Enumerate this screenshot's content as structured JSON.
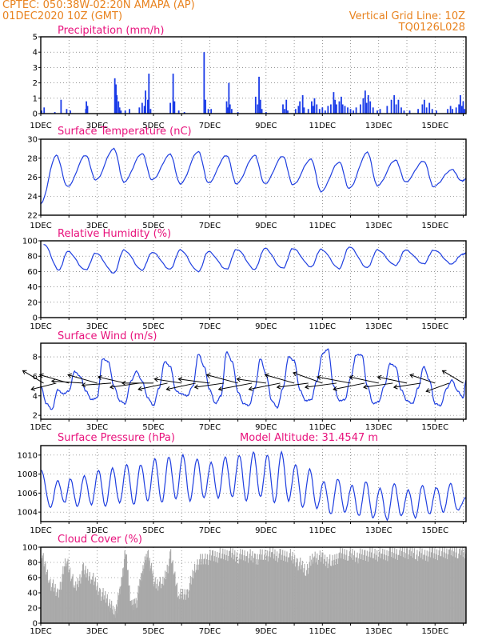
{
  "header": {
    "line1_left": "CPTEC:   050:38W-02:20N   AMAPA (AP)",
    "line2_left": "01DEC2020 10Z (GMT)",
    "line1_right": "Vertical Grid Line: 10Z",
    "line2_right": "TQ0126L028"
  },
  "colors": {
    "line": "#1f3fe0",
    "bar": "#1a3be8",
    "cloud": "#a9a9a9",
    "title": "#e8127c",
    "header": "#e8821e"
  },
  "x_ticks": [
    "1DEC",
    "3DEC",
    "5DEC",
    "7DEC",
    "9DEC",
    "11DEC",
    "13DEC",
    "15DEC"
  ],
  "chart_data": [
    {
      "type": "bar",
      "title": "Precipitation (mm/h)",
      "ylim": [
        0,
        5
      ],
      "yticks": [
        0,
        1,
        2,
        3,
        4,
        5
      ],
      "x_start_day": 1,
      "x_end_day": 16.1,
      "events": [
        [
          1.03,
          0.2
        ],
        [
          1.12,
          0.4
        ],
        [
          1.5,
          0.1
        ],
        [
          1.72,
          0.9
        ],
        [
          1.92,
          0.3
        ],
        [
          2.05,
          0.2
        ],
        [
          2.6,
          0.3
        ],
        [
          2.62,
          0.8
        ],
        [
          2.66,
          0.5
        ],
        [
          3.63,
          2.3
        ],
        [
          3.67,
          1.9
        ],
        [
          3.7,
          1.2
        ],
        [
          3.76,
          0.8
        ],
        [
          3.8,
          0.4
        ],
        [
          3.85,
          0.2
        ],
        [
          4.0,
          0.2
        ],
        [
          4.15,
          0.3
        ],
        [
          4.5,
          0.4
        ],
        [
          4.6,
          0.7
        ],
        [
          4.68,
          0.5
        ],
        [
          4.72,
          1.5
        ],
        [
          4.8,
          0.9
        ],
        [
          4.84,
          2.6
        ],
        [
          4.9,
          0.3
        ],
        [
          5.6,
          0.7
        ],
        [
          5.7,
          2.6
        ],
        [
          5.75,
          0.8
        ],
        [
          5.9,
          0.2
        ],
        [
          6.1,
          0.1
        ],
        [
          6.8,
          4.0
        ],
        [
          6.85,
          0.9
        ],
        [
          6.95,
          0.3
        ],
        [
          7.05,
          0.3
        ],
        [
          7.6,
          0.8
        ],
        [
          7.64,
          0.4
        ],
        [
          7.68,
          2.0
        ],
        [
          7.72,
          0.6
        ],
        [
          7.78,
          0.3
        ],
        [
          8.0,
          0.1
        ],
        [
          8.63,
          1.1
        ],
        [
          8.7,
          0.6
        ],
        [
          8.75,
          2.4
        ],
        [
          8.8,
          0.9
        ],
        [
          8.85,
          0.3
        ],
        [
          9.0,
          0.1
        ],
        [
          9.6,
          0.6
        ],
        [
          9.66,
          0.3
        ],
        [
          9.72,
          0.9
        ],
        [
          9.77,
          0.2
        ],
        [
          10.05,
          0.3
        ],
        [
          10.15,
          0.5
        ],
        [
          10.2,
          0.8
        ],
        [
          10.3,
          1.2
        ],
        [
          10.35,
          0.4
        ],
        [
          10.5,
          0.3
        ],
        [
          10.62,
          0.8
        ],
        [
          10.67,
          0.5
        ],
        [
          10.72,
          1.0
        ],
        [
          10.8,
          0.6
        ],
        [
          10.9,
          0.3
        ],
        [
          11.0,
          0.4
        ],
        [
          11.1,
          0.2
        ],
        [
          11.2,
          0.5
        ],
        [
          11.3,
          0.6
        ],
        [
          11.4,
          1.4
        ],
        [
          11.45,
          0.9
        ],
        [
          11.5,
          0.6
        ],
        [
          11.6,
          0.8
        ],
        [
          11.67,
          1.1
        ],
        [
          11.72,
          0.6
        ],
        [
          11.8,
          0.5
        ],
        [
          11.9,
          0.4
        ],
        [
          12.0,
          0.3
        ],
        [
          12.1,
          0.2
        ],
        [
          12.2,
          0.4
        ],
        [
          12.35,
          0.6
        ],
        [
          12.45,
          1.0
        ],
        [
          12.52,
          1.5
        ],
        [
          12.57,
          0.7
        ],
        [
          12.63,
          1.2
        ],
        [
          12.7,
          0.8
        ],
        [
          12.8,
          0.4
        ],
        [
          12.95,
          0.2
        ],
        [
          13.05,
          0.3
        ],
        [
          13.3,
          0.5
        ],
        [
          13.45,
          0.9
        ],
        [
          13.55,
          1.2
        ],
        [
          13.62,
          0.6
        ],
        [
          13.7,
          0.9
        ],
        [
          13.8,
          0.4
        ],
        [
          13.9,
          0.2
        ],
        [
          14.1,
          0.2
        ],
        [
          14.4,
          0.3
        ],
        [
          14.55,
          0.6
        ],
        [
          14.62,
          0.9
        ],
        [
          14.7,
          0.4
        ],
        [
          14.8,
          0.7
        ],
        [
          14.9,
          0.3
        ],
        [
          15.05,
          0.2
        ],
        [
          15.45,
          0.3
        ],
        [
          15.55,
          0.5
        ],
        [
          15.62,
          0.3
        ],
        [
          15.75,
          0.4
        ],
        [
          15.85,
          0.6
        ],
        [
          15.9,
          1.2
        ],
        [
          15.95,
          0.5
        ],
        [
          16.0,
          0.8
        ],
        [
          16.05,
          0.3
        ]
      ]
    },
    {
      "type": "line",
      "title": "Surface Temperature (nC)",
      "ylim": [
        22,
        30
      ],
      "yticks": [
        22,
        24,
        26,
        28,
        30
      ],
      "x_start_day": 1,
      "x_end_day": 16.1,
      "days_min": [
        1.0,
        1.95,
        2.95,
        3.95,
        4.95,
        5.95,
        6.95,
        7.95,
        8.95,
        9.95,
        10.95,
        11.95,
        12.95,
        13.95,
        14.95,
        15.95
      ],
      "min_values": [
        23.2,
        25.0,
        25.7,
        25.5,
        25.7,
        25.3,
        25.4,
        25.3,
        25.3,
        25.2,
        24.5,
        24.8,
        25.1,
        25.5,
        25.0,
        25.6
      ],
      "days_max": [
        1.55,
        2.6,
        3.6,
        4.6,
        5.6,
        6.6,
        7.6,
        8.6,
        9.6,
        10.6,
        11.6,
        12.6,
        13.6,
        14.6,
        15.6
      ],
      "max_values": [
        28.3,
        28.3,
        29.0,
        28.5,
        28.4,
        28.7,
        28.3,
        28.3,
        28.2,
        27.9,
        27.6,
        28.6,
        27.8,
        27.7,
        26.8
      ],
      "start_value": 23.2,
      "end_value": 25.8
    },
    {
      "type": "line",
      "title": "Relative Humidity (%)",
      "ylim": [
        0,
        100
      ],
      "yticks": [
        0,
        20,
        40,
        60,
        80,
        100
      ],
      "x_start_day": 1,
      "x_end_day": 16.1,
      "days_max": [
        1.1,
        1.95,
        2.95,
        3.95,
        4.95,
        5.95,
        6.95,
        7.95,
        8.95,
        9.95,
        10.95,
        11.95,
        12.95,
        13.95,
        14.95,
        15.95
      ],
      "max_values": [
        96,
        86,
        84,
        88,
        85,
        88,
        86,
        89,
        90,
        90,
        89,
        92,
        88,
        88,
        88,
        82
      ],
      "days_min": [
        1.65,
        2.6,
        3.6,
        4.6,
        5.6,
        6.6,
        7.6,
        8.6,
        9.6,
        10.6,
        11.6,
        12.6,
        13.6,
        14.6,
        15.6
      ],
      "min_values": [
        62,
        62,
        58,
        62,
        63,
        60,
        63,
        63,
        64,
        66,
        64,
        65,
        68,
        70,
        70
      ],
      "end_value": 84
    },
    {
      "type": "line",
      "title": "Surface Wind (m/s)",
      "ylim": [
        1.6,
        9.4
      ],
      "yticks": [
        2,
        4,
        6,
        8
      ],
      "x_start_day": 1,
      "x_end_day": 16.1,
      "days": [
        1.0,
        1.2,
        1.4,
        1.6,
        1.8,
        2.0,
        2.2,
        2.4,
        2.6,
        2.8,
        3.0,
        3.2,
        3.4,
        3.6,
        3.8,
        4.0,
        4.2,
        4.4,
        4.6,
        4.8,
        5.0,
        5.2,
        5.4,
        5.6,
        5.8,
        6.0,
        6.2,
        6.4,
        6.6,
        6.8,
        7.0,
        7.2,
        7.4,
        7.6,
        7.8,
        8.0,
        8.2,
        8.4,
        8.6,
        8.8,
        9.0,
        9.2,
        9.4,
        9.6,
        9.8,
        10.0,
        10.2,
        10.4,
        10.6,
        10.8,
        11.0,
        11.2,
        11.4,
        11.6,
        11.8,
        12.0,
        12.2,
        12.4,
        12.6,
        12.8,
        13.0,
        13.2,
        13.4,
        13.6,
        13.8,
        14.0,
        14.2,
        14.4,
        14.6,
        14.8,
        15.0,
        15.2,
        15.4,
        15.6,
        15.8,
        16.0,
        16.1
      ],
      "values": [
        5.0,
        3.2,
        2.6,
        4.6,
        4.2,
        4.5,
        6.5,
        6.0,
        4.5,
        3.6,
        3.8,
        7.8,
        7.5,
        5.0,
        3.5,
        3.2,
        5.5,
        6.5,
        5.5,
        3.8,
        3.0,
        4.8,
        7.5,
        7.0,
        4.5,
        4.2,
        4.0,
        5.0,
        8.3,
        7.0,
        4.6,
        3.2,
        4.0,
        8.5,
        7.5,
        4.4,
        3.2,
        3.0,
        4.8,
        7.8,
        6.2,
        3.5,
        2.8,
        4.8,
        8.0,
        7.6,
        4.6,
        3.5,
        3.6,
        5.5,
        8.3,
        8.8,
        5.0,
        3.5,
        3.6,
        5.8,
        8.2,
        8.2,
        5.0,
        3.2,
        3.4,
        5.0,
        7.3,
        7.0,
        4.6,
        3.5,
        3.2,
        4.8,
        7.0,
        5.6,
        3.2,
        3.0,
        4.7,
        5.6,
        4.5,
        3.8,
        5.6
      ],
      "vectors_days": [
        1.1,
        1.55,
        2.0,
        2.5,
        3.0,
        3.5,
        4.0,
        4.5,
        5.0,
        5.5,
        6.0,
        6.5,
        7.0,
        7.5,
        8.0,
        8.5,
        9.0,
        9.5,
        10.0,
        10.5,
        11.0,
        11.5,
        12.0,
        12.5,
        13.0,
        13.5,
        14.0,
        14.5,
        15.0,
        15.5,
        16.0
      ],
      "vectors_u": [
        -1.0,
        -1.2,
        -1.4,
        -1.5,
        -1.4,
        -1.4,
        -1.3,
        -1.4,
        -1.5,
        -1.4,
        -1.3,
        -1.4,
        -1.5,
        -1.4,
        -1.5,
        -1.6,
        -1.4,
        -1.5,
        -1.4,
        -1.5,
        -1.4,
        -1.5,
        -1.6,
        -1.5,
        -1.4,
        -1.4,
        -1.4,
        -1.3,
        -1.2,
        -1.1,
        -1.0
      ],
      "vectors_v": [
        0.6,
        -0.3,
        0.4,
        0.1,
        0.4,
        -0.1,
        0.3,
        -0.2,
        0.0,
        -0.3,
        0.2,
        -0.3,
        0.2,
        -0.2,
        0.4,
        -0.3,
        0.2,
        -0.3,
        0.4,
        -0.2,
        0.5,
        -0.2,
        0.3,
        -0.3,
        0.3,
        -0.2,
        0.3,
        -0.2,
        0.4,
        -0.4,
        0.6
      ]
    },
    {
      "type": "line",
      "title": "Surface Pressure (hPa)",
      "subtitle": "Model Altitude: 31.4547 m",
      "ylim": [
        1003,
        1011
      ],
      "yticks": [
        1004,
        1006,
        1008,
        1010
      ],
      "x_start_day": 1,
      "x_end_day": 16.1,
      "days_max": [
        1.0,
        1.6,
        2.05,
        2.55,
        3.05,
        3.55,
        4.05,
        4.55,
        5.05,
        5.55,
        6.05,
        6.55,
        7.05,
        7.55,
        8.05,
        8.55,
        9.05,
        9.55,
        10.05,
        10.55,
        11.05,
        11.55,
        12.05,
        12.55,
        13.05,
        13.55,
        14.05,
        14.55,
        15.05,
        15.55
      ],
      "max_values": [
        1008.5,
        1007.3,
        1007.5,
        1007.8,
        1008.4,
        1008.6,
        1009.0,
        1009.0,
        1009.6,
        1009.8,
        1010.0,
        1009.6,
        1009.2,
        1009.8,
        1010.0,
        1010.3,
        1010.0,
        1010.3,
        1009.0,
        1008.5,
        1007.2,
        1007.5,
        1006.8,
        1007.2,
        1006.5,
        1007.0,
        1006.3,
        1006.8,
        1006.6,
        1007.0
      ],
      "days_min": [
        1.35,
        1.85,
        2.3,
        2.8,
        3.3,
        3.8,
        4.3,
        4.8,
        5.3,
        5.8,
        6.3,
        6.8,
        7.3,
        7.8,
        8.3,
        8.8,
        9.3,
        9.8,
        10.3,
        10.8,
        11.3,
        11.8,
        12.3,
        12.8,
        13.3,
        13.8,
        14.3,
        14.8,
        15.3,
        15.8
      ],
      "min_values": [
        1004.5,
        1005.0,
        1004.6,
        1004.8,
        1004.6,
        1005.0,
        1004.8,
        1005.2,
        1005.0,
        1005.4,
        1005.2,
        1005.5,
        1005.5,
        1005.6,
        1005.2,
        1005.6,
        1005.0,
        1005.2,
        1004.5,
        1004.4,
        1003.8,
        1004.0,
        1003.6,
        1003.4,
        1003.2,
        1003.6,
        1003.4,
        1003.8,
        1004.0,
        1004.2
      ],
      "end_value": 1005.5
    },
    {
      "type": "area",
      "title": "Cloud Cover (%)",
      "ylim": [
        0,
        100
      ],
      "yticks": [
        0,
        20,
        40,
        60,
        80,
        100
      ],
      "x_start_day": 1,
      "x_end_day": 16.1,
      "days": [
        1.0,
        1.3,
        1.6,
        1.9,
        2.2,
        2.5,
        2.8,
        3.1,
        3.4,
        3.6,
        3.8,
        4.0,
        4.2,
        4.4,
        4.6,
        4.8,
        5.0,
        5.3,
        5.6,
        5.9,
        6.2,
        6.5,
        6.8,
        7.1,
        7.4,
        7.7,
        8.0,
        8.3,
        8.6,
        8.9,
        9.2,
        9.5,
        9.8,
        10.1,
        10.4,
        10.7,
        11.0,
        11.3,
        11.6,
        11.9,
        12.2,
        12.5,
        12.8,
        13.1,
        13.4,
        13.7,
        14.0,
        14.3,
        14.6,
        14.9,
        15.2,
        15.5,
        15.8,
        16.1
      ],
      "values": [
        92,
        55,
        38,
        85,
        45,
        70,
        60,
        40,
        30,
        10,
        40,
        95,
        20,
        30,
        70,
        90,
        55,
        50,
        88,
        35,
        40,
        78,
        85,
        88,
        90,
        92,
        88,
        90,
        85,
        90,
        92,
        88,
        90,
        80,
        70,
        88,
        85,
        80,
        90,
        92,
        88,
        90,
        92,
        90,
        92,
        93,
        94,
        92,
        90,
        92,
        93,
        94,
        95,
        93
      ]
    }
  ]
}
